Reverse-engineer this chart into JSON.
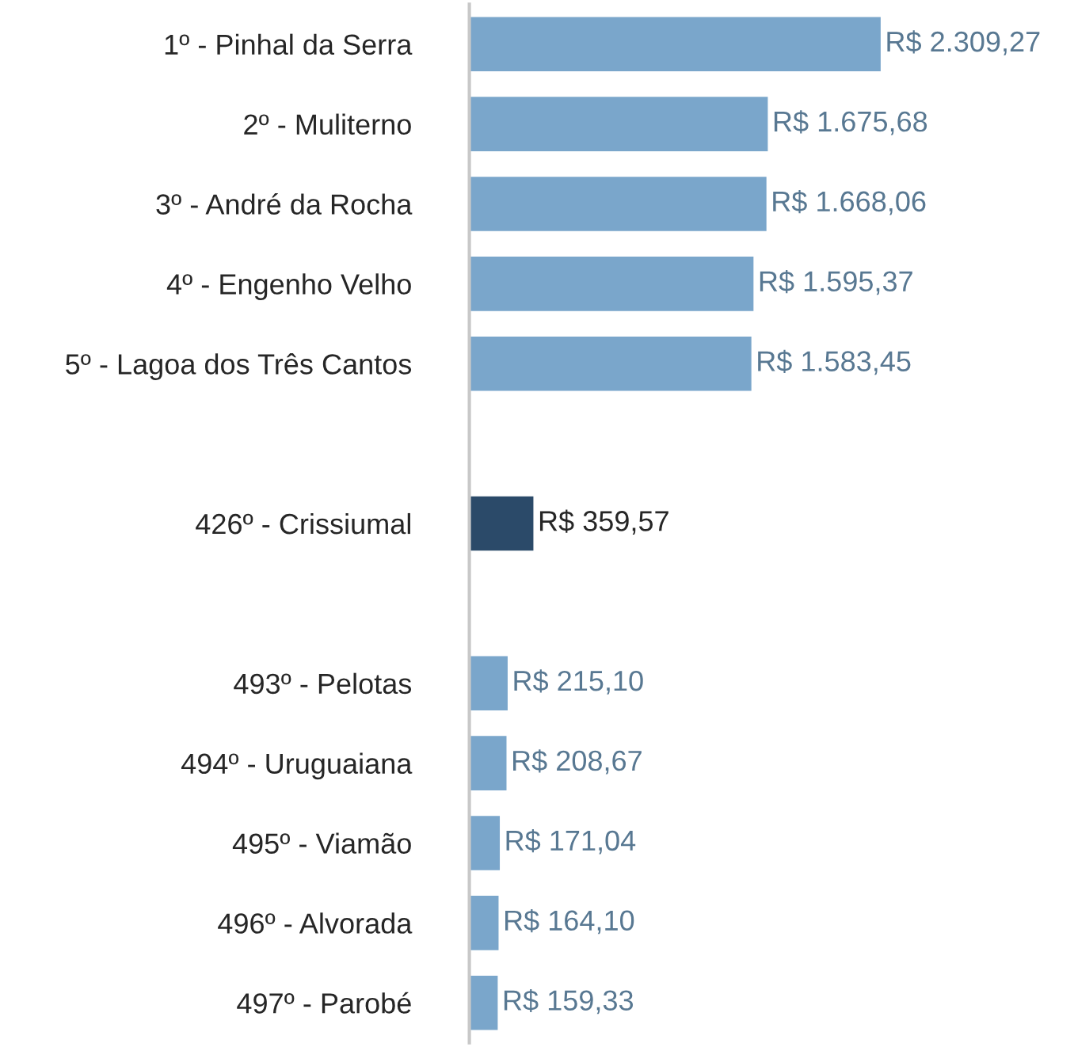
{
  "chart_data": {
    "type": "bar",
    "orientation": "horizontal",
    "categories": [
      "1º - Pinhal da Serra",
      "2º - Muliterno",
      "3º - André da Rocha",
      "4º - Engenho Velho",
      "5º - Lagoa dos Três Cantos",
      null,
      "426º - Crissiumal",
      null,
      "493º - Pelotas",
      "494º - Uruguaiana",
      "495º - Viamão",
      "496º - Alvorada",
      "497º - Parobé"
    ],
    "values": [
      2309.27,
      1675.68,
      1668.06,
      1595.37,
      1583.45,
      null,
      359.57,
      null,
      215.1,
      208.67,
      171.04,
      164.1,
      159.33
    ],
    "colors": [
      "#7aa6cb",
      "#7aa6cb",
      "#7aa6cb",
      "#7aa6cb",
      "#7aa6cb",
      null,
      "#2b4a69",
      null,
      "#7aa6cb",
      "#7aa6cb",
      "#7aa6cb",
      "#7aa6cb",
      "#7aa6cb"
    ],
    "value_labels": [
      "R$ 2.309,27",
      "R$ 1.675,68",
      "R$ 1.668,06",
      "R$ 1.595,37",
      "R$ 1.583,45",
      null,
      "R$ 359,57",
      null,
      "R$ 215,10",
      "R$ 208,67",
      "R$ 171,04",
      "R$ 164,10",
      "R$ 159,33"
    ],
    "grid": false,
    "legend": false
  }
}
